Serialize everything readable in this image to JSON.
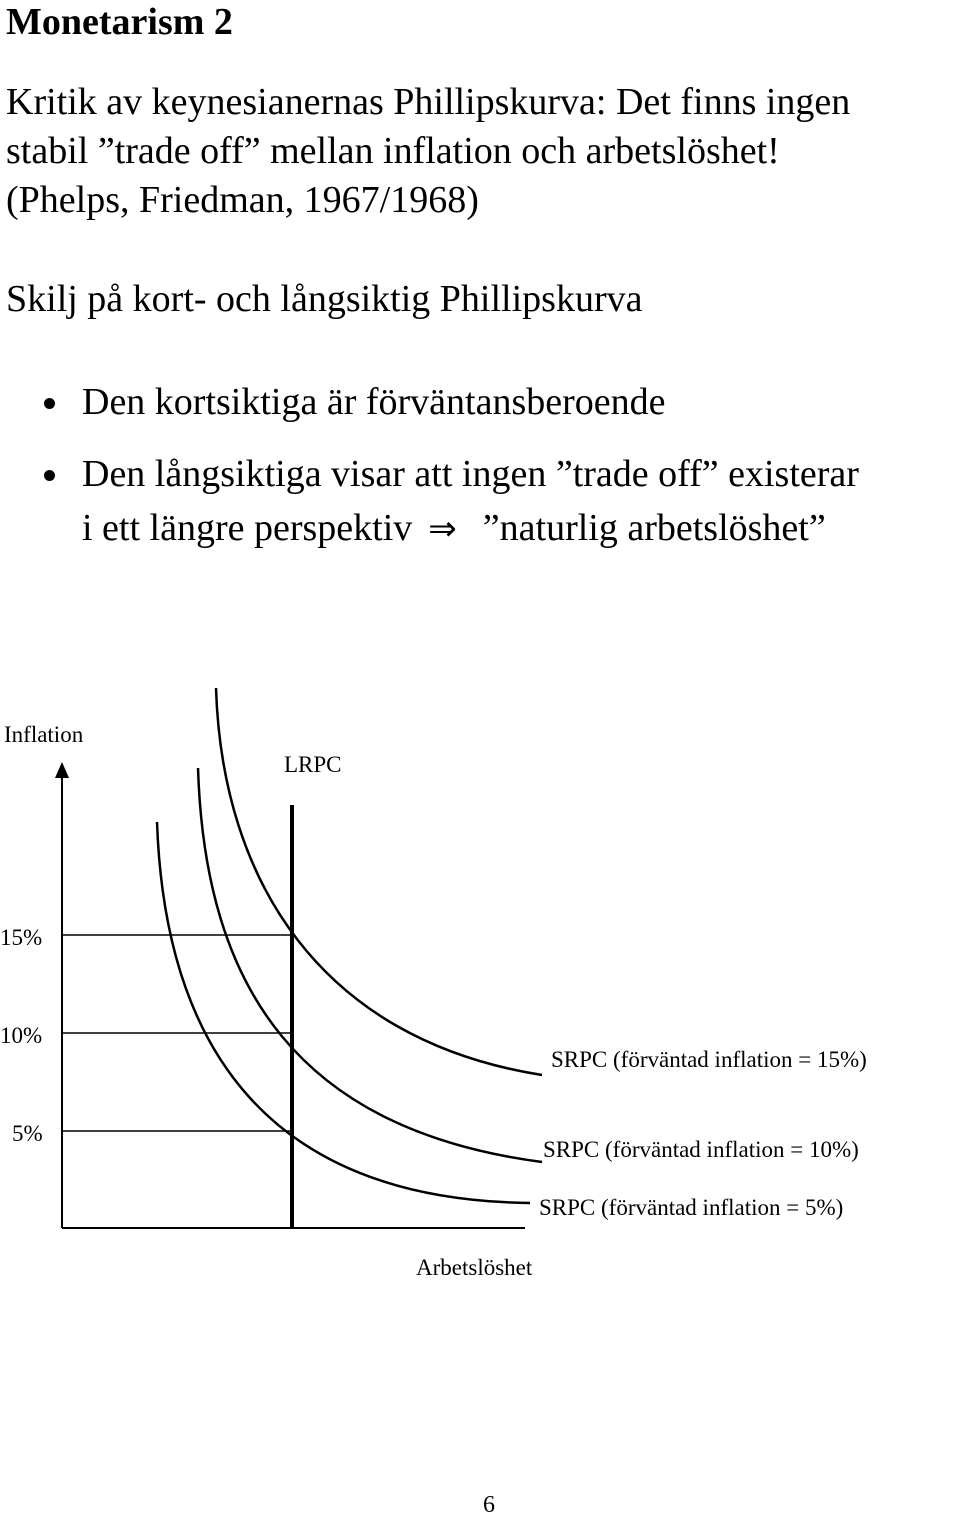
{
  "title": "Monetarism 2",
  "intro_lines": [
    "Kritik av keynesianernas Phillipskurva: Det finns ingen",
    "stabil ”trade off” mellan inflation och arbetslöshet!",
    "(Phelps, Friedman, 1967/1968)"
  ],
  "subheading": "Skilj på kort- och långsiktig Phillipskurva",
  "bullets": {
    "first": "Den kortsiktiga är förväntansberoende",
    "second_line1": "Den långsiktiga visar att ingen ”trade off” existerar",
    "second_line2_start": "i ett längre perspektiv",
    "second_line2_end": "”naturlig arbetslöshet”",
    "implies_symbol": "⇒"
  },
  "chart_data": {
    "type": "line",
    "title": "",
    "xlabel": "Arbetslöshet",
    "ylabel": "Inflation",
    "yticks": [
      "15%",
      "10%",
      "5%"
    ],
    "ytick_values": [
      15,
      10,
      5
    ],
    "lrpc_label": "LRPC",
    "series": [
      {
        "name": "SRPC (förväntad inflation = 15%)",
        "expected_inflation": 15
      },
      {
        "name": "SRPC (förväntad inflation = 10%)",
        "expected_inflation": 10
      },
      {
        "name": "SRPC (förväntad inflation = 5%)",
        "expected_inflation": 5
      }
    ]
  },
  "page_number": "6"
}
